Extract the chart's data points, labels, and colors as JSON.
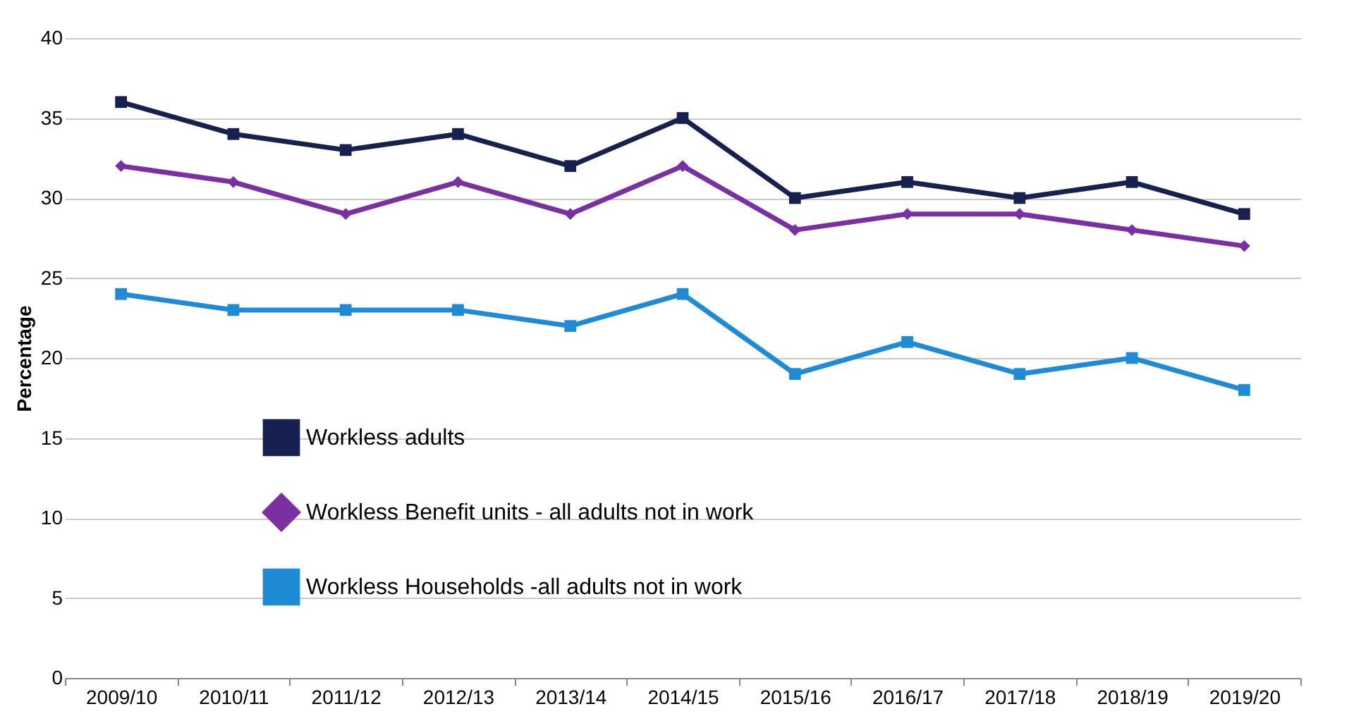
{
  "chart_data": {
    "type": "line",
    "ylabel": "Percentage",
    "categories": [
      "2009/10",
      "2010/11",
      "2011/12",
      "2012/13",
      "2013/14",
      "2014/15",
      "2015/16",
      "2016/17",
      "2017/18",
      "2018/19",
      "2019/20"
    ],
    "series": [
      {
        "name": "Workless adults",
        "color": "#16214f",
        "marker": "square",
        "values": [
          36,
          34,
          33,
          34,
          32,
          35,
          30,
          31,
          30,
          31,
          29
        ]
      },
      {
        "name": "Workless Benefit units - all adults not in work",
        "color": "#7a30a0",
        "marker": "diamond",
        "values": [
          32,
          31,
          29,
          31,
          29,
          32,
          28,
          29,
          29,
          28,
          27
        ]
      },
      {
        "name": "Workless Households -all adults not in work",
        "color": "#1f8ad6",
        "marker": "square",
        "values": [
          24,
          23,
          23,
          23,
          22,
          24,
          19,
          21,
          19,
          20,
          18
        ]
      }
    ],
    "ylim": [
      0,
      40
    ],
    "yticks": [
      0,
      5,
      10,
      15,
      20,
      25,
      30,
      35,
      40
    ],
    "grid": "y",
    "legend": "bottom left",
    "line_style": "solid"
  }
}
